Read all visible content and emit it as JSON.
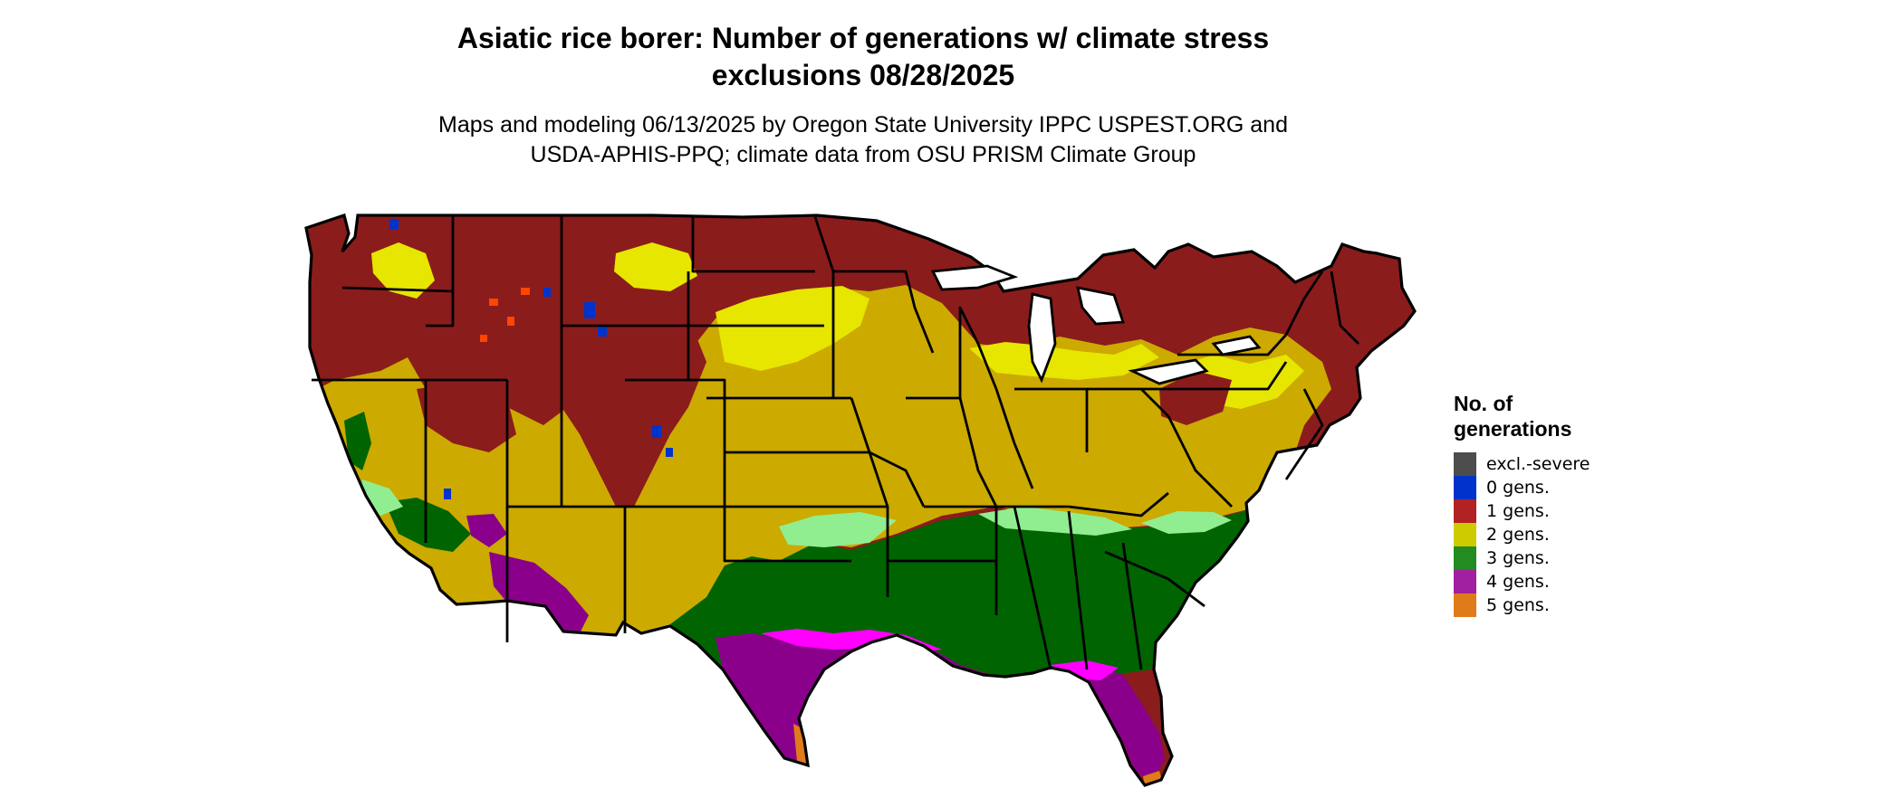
{
  "title_line1": "Asiatic rice borer: Number of generations w/ climate stress",
  "title_line2": "exclusions 08/28/2025",
  "subtitle_line1": "Maps and modeling 06/13/2025 by Oregon State University IPPC USPEST.ORG and",
  "subtitle_line2": "USDA-APHIS-PPQ; climate data from OSU PRISM Climate Group",
  "legend": {
    "title_line1": "No. of",
    "title_line2": "generations",
    "items": [
      {
        "label": "excl.-severe",
        "color": "#4d4d4d"
      },
      {
        "label": "0 gens.",
        "color": "#0033cc"
      },
      {
        "label": "1 gens.",
        "color": "#b22222"
      },
      {
        "label": "2 gens.",
        "color": "#cccc00"
      },
      {
        "label": "3 gens.",
        "color": "#228b22"
      },
      {
        "label": "4 gens.",
        "color": "#a020a0"
      },
      {
        "label": "5 gens.",
        "color": "#e07b1a"
      }
    ]
  },
  "map": {
    "region": "Contiguous United States",
    "zone_colors": {
      "gen1": "#8b1c1c",
      "gen2": "#ccaa00",
      "gen2_bright": "#e6e600",
      "gen3": "#006400",
      "gen3_light": "#90ee90",
      "gen4": "#8b008b",
      "gen4_bright": "#ff00ff",
      "gen5": "#e07b1a",
      "gen0": "#0033cc",
      "excl": "#ff4500"
    }
  }
}
